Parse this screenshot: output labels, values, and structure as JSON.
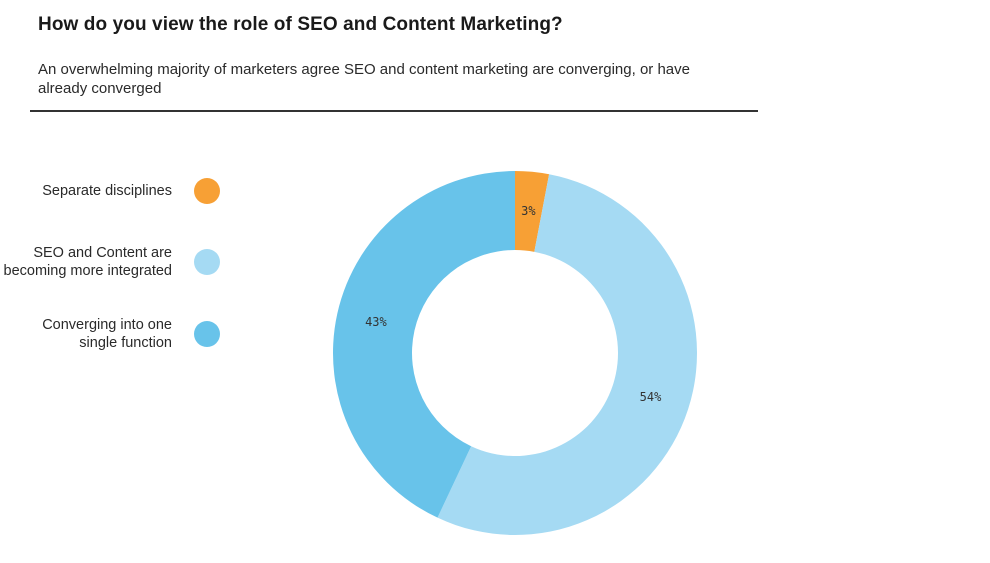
{
  "header": {
    "title": "How do you view the role of SEO and Content Marketing?",
    "subtitle": "An overwhelming majority of marketers agree SEO and content marketing are converging, or have already converged"
  },
  "legend": {
    "items": [
      {
        "label_lines": [
          "Separate disciplines"
        ],
        "color": "#F7A035"
      },
      {
        "label_lines": [
          "SEO and Content are",
          "becoming more integrated"
        ],
        "color": "#A5DAF3"
      },
      {
        "label_lines": [
          "Converging into one",
          "single function"
        ],
        "color": "#68C3EA"
      }
    ]
  },
  "chart_data": {
    "type": "pie",
    "donut": true,
    "title": "How do you view the role of SEO and Content Marketing?",
    "categories": [
      "Separate disciplines",
      "SEO and Content are becoming more integrated",
      "Converging into one single function"
    ],
    "values": [
      3,
      54,
      43
    ],
    "data_labels": [
      "3%",
      "54%",
      "43%"
    ],
    "colors": [
      "#F7A035",
      "#A5DAF3",
      "#68C3EA"
    ],
    "legend_position": "left",
    "start": "top",
    "direction": "clockwise"
  }
}
